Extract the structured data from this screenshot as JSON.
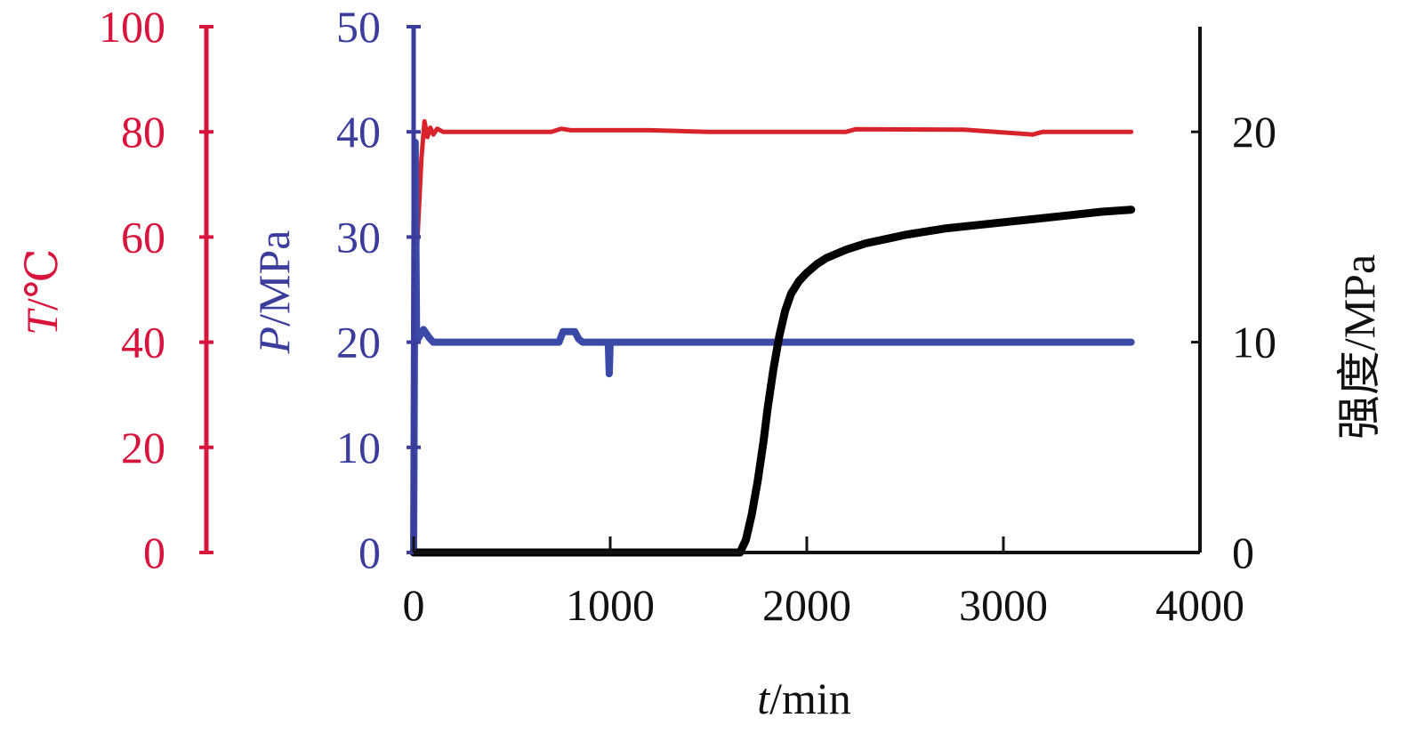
{
  "chart_data": {
    "type": "line",
    "x_axis": {
      "label_var": "t",
      "label_unit": "/min",
      "range": [
        0,
        4000
      ],
      "ticks": [
        "0",
        "1000",
        "2000",
        "3000",
        "4000"
      ],
      "tick_values": [
        0,
        1000,
        2000,
        3000,
        4000
      ]
    },
    "axes": [
      {
        "id": "T",
        "label_var": "T",
        "label_unit": "/℃",
        "color": "#d8143c",
        "range": [
          0,
          100
        ],
        "ticks": [
          "0",
          "20",
          "40",
          "60",
          "80",
          "100"
        ],
        "tick_values": [
          0,
          20,
          40,
          60,
          80,
          100
        ]
      },
      {
        "id": "P",
        "label_var": "P",
        "label_unit": "/MPa",
        "color": "#3b3d9c",
        "range": [
          0,
          50
        ],
        "ticks": [
          "0",
          "10",
          "20",
          "30",
          "40",
          "50"
        ],
        "tick_values": [
          0,
          10,
          20,
          30,
          40,
          50
        ]
      },
      {
        "id": "S",
        "label": "强度/MPa",
        "color": "#111111",
        "range": [
          0,
          25
        ],
        "ticks": [
          "0",
          "10",
          "20"
        ],
        "tick_values": [
          0,
          10,
          20
        ]
      }
    ],
    "series": [
      {
        "axis": "T",
        "color": "#d8232a",
        "x": [
          0,
          20,
          40,
          55,
          70,
          85,
          100,
          120,
          150,
          300,
          700,
          750,
          800,
          1200,
          1500,
          2200,
          2250,
          2800,
          3150,
          3200,
          3650
        ],
        "y": [
          40,
          60,
          75,
          82,
          79,
          80.8,
          79.5,
          80.6,
          80,
          80,
          80,
          80.6,
          80.3,
          80.3,
          80,
          80,
          80.5,
          80.4,
          79.5,
          80,
          80
        ]
      },
      {
        "axis": "P",
        "color": "#3a4aa6",
        "x": [
          0,
          8,
          15,
          25,
          50,
          80,
          100,
          200,
          740,
          760,
          820,
          840,
          860,
          880,
          990,
          995,
          1000,
          1005,
          1010,
          1500,
          3650
        ],
        "y": [
          0,
          39,
          21,
          20.4,
          21.2,
          20.4,
          20,
          20,
          20,
          21,
          21,
          20.3,
          20,
          20,
          20,
          17,
          20,
          20,
          20,
          20,
          20
        ]
      },
      {
        "axis": "S",
        "color": "#000000",
        "x": [
          0,
          1600,
          1660,
          1690,
          1720,
          1750,
          1780,
          1800,
          1830,
          1860,
          1890,
          1920,
          1960,
          2000,
          2050,
          2100,
          2200,
          2300,
          2400,
          2500,
          2700,
          2900,
          3100,
          3300,
          3500,
          3650
        ],
        "y": [
          0,
          0,
          0,
          0.6,
          1.8,
          3.4,
          5.3,
          6.8,
          8.7,
          10.3,
          11.5,
          12.3,
          12.9,
          13.3,
          13.7,
          14.0,
          14.4,
          14.7,
          14.9,
          15.1,
          15.4,
          15.6,
          15.8,
          16.0,
          16.2,
          16.3
        ]
      }
    ]
  }
}
